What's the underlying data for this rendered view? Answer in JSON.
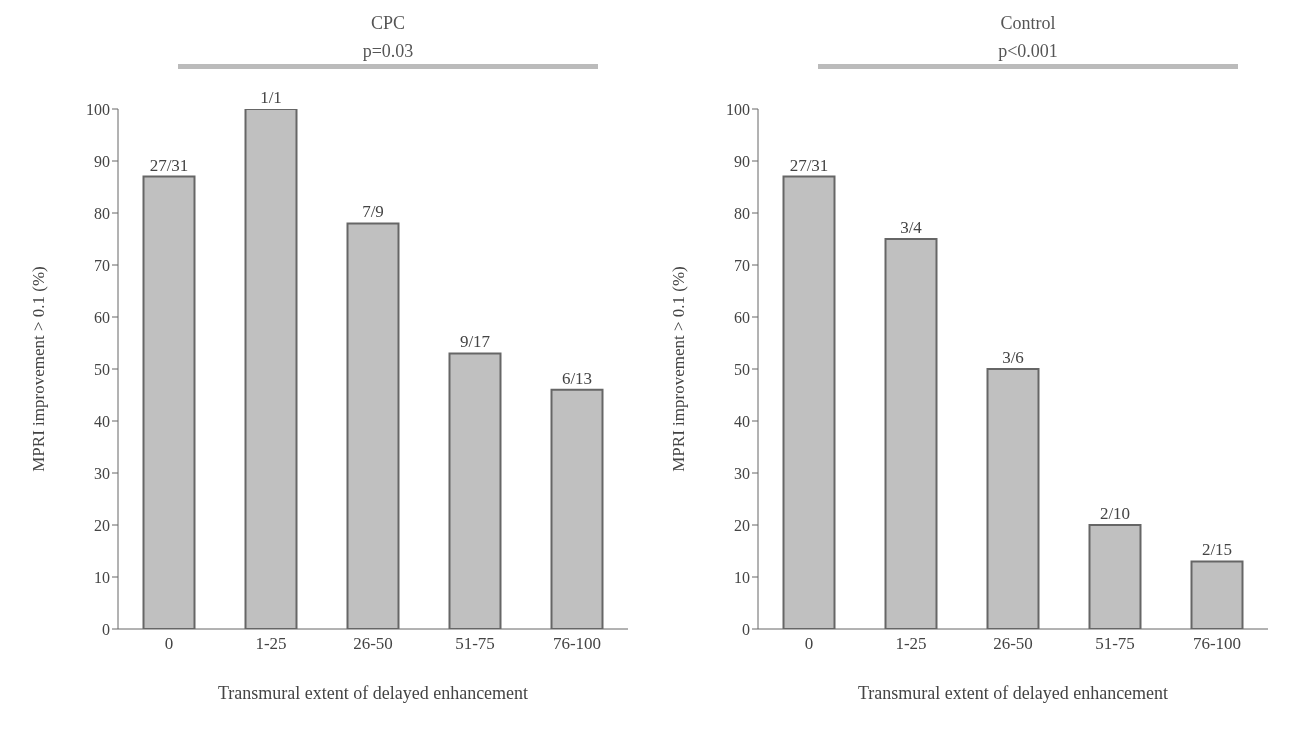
{
  "chart_data": [
    {
      "type": "bar",
      "title": "CPC",
      "subtitle": "p=0.03",
      "xlabel": "Transmural extent of delayed  enhancement",
      "ylabel": "MPRI improvement > 0.1 (%)",
      "categories": [
        "0",
        "1-25",
        "26-50",
        "51-75",
        "76-100"
      ],
      "values": [
        87,
        100,
        78,
        53,
        46
      ],
      "color": "#c0c0c0",
      "ylim": [
        0,
        100
      ],
      "yticks": [
        0,
        10,
        20,
        30,
        40,
        50,
        60,
        70,
        80,
        90,
        100
      ],
      "grid": false,
      "legend": false,
      "annotations": [
        {
          "text": "27/31",
          "x": "0",
          "y": 87
        },
        {
          "text": "1/1",
          "x": "1-25",
          "y": 100
        },
        {
          "text": "7/9",
          "x": "26-50",
          "y": 78
        },
        {
          "text": "9/17",
          "x": "51-75",
          "y": 53
        },
        {
          "text": "6/13",
          "x": "76-100",
          "y": 46
        }
      ]
    },
    {
      "type": "bar",
      "title": "Control",
      "subtitle": "p<0.001",
      "xlabel": "Transmural extent of delayed  enhancement",
      "ylabel": "MPRI improvement > 0.1 (%)",
      "categories": [
        "0",
        "1-25",
        "26-50",
        "51-75",
        "76-100"
      ],
      "values": [
        87,
        75,
        50,
        20,
        13
      ],
      "color": "#c0c0c0",
      "ylim": [
        0,
        100
      ],
      "yticks": [
        0,
        10,
        20,
        30,
        40,
        50,
        60,
        70,
        80,
        90,
        100
      ],
      "grid": false,
      "legend": false,
      "annotations": [
        {
          "text": "27/31",
          "x": "0",
          "y": 87
        },
        {
          "text": "3/4",
          "x": "1-25",
          "y": 75
        },
        {
          "text": "3/6",
          "x": "26-50",
          "y": 50
        },
        {
          "text": "2/10",
          "x": "51-75",
          "y": 20
        },
        {
          "text": "2/15",
          "x": "76-100",
          "y": 13
        }
      ]
    }
  ]
}
